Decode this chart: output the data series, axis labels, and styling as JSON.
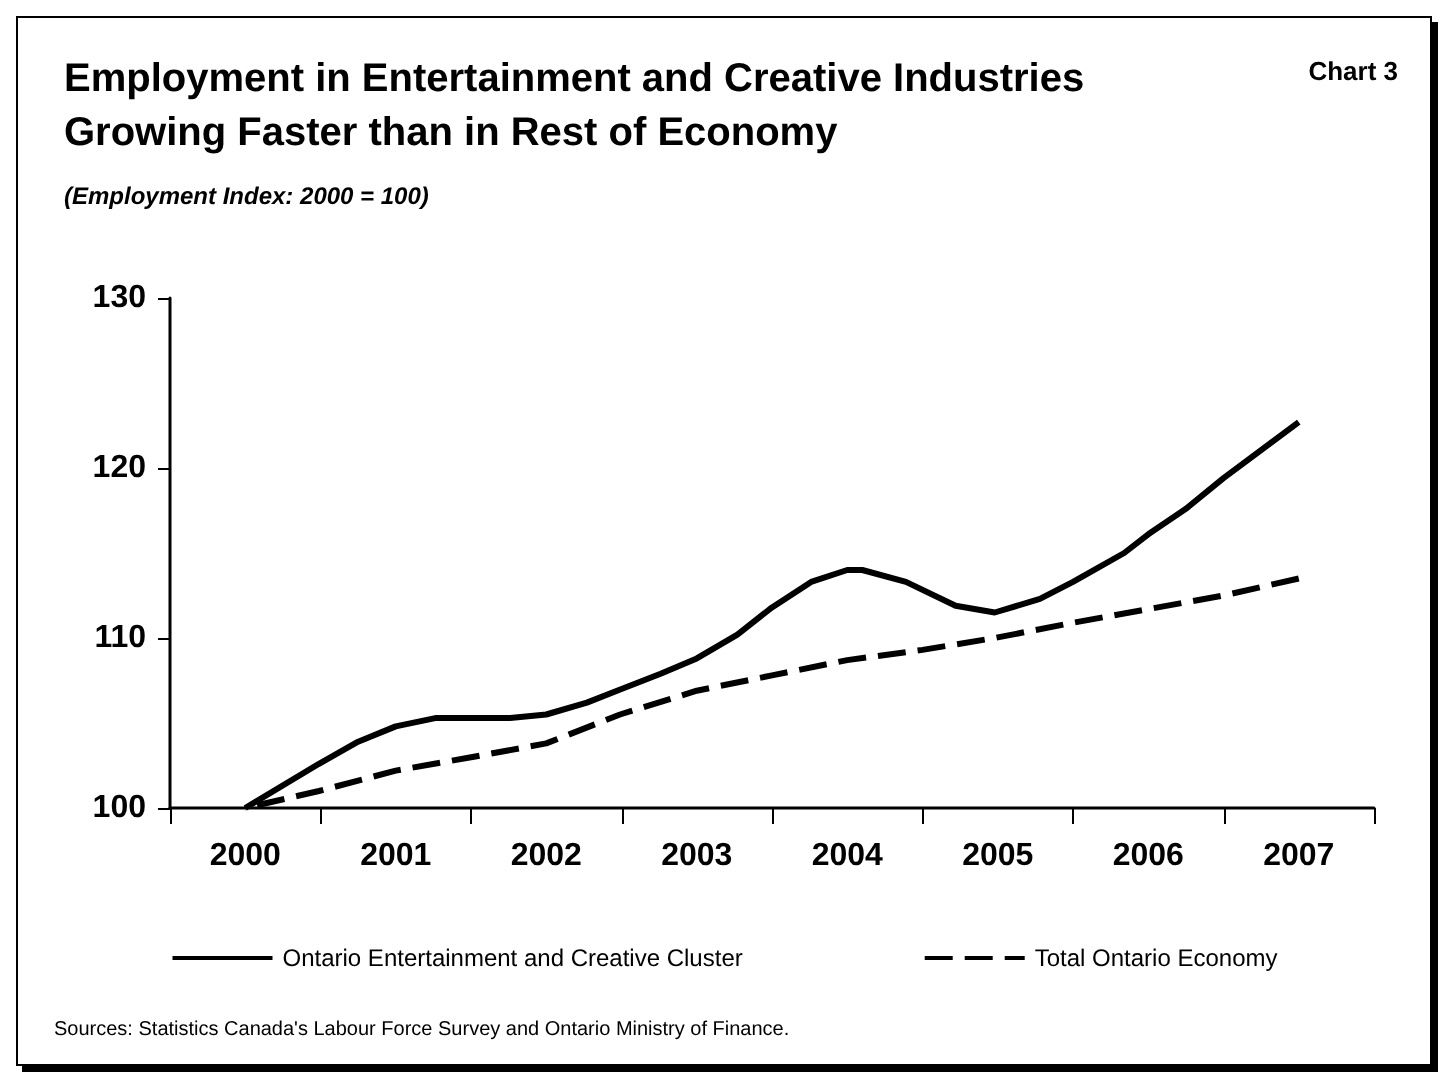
{
  "chart_data": {
    "type": "line",
    "title": "Employment in Entertainment and Creative Industries\nGrowing Faster than in Rest of Economy",
    "subtitle": "(Employment Index: 2000 = 100)",
    "annotations": [
      "Chart 3",
      "Sources: Statistics Canada's Labour Force Survey and Ontario Ministry of Finance."
    ],
    "series": [
      {
        "name": "Ontario Entertainment and Creative Cluster",
        "color": "#000000",
        "line_style": "solid",
        "x": [
          2000,
          2000.49,
          2000.75,
          2001.0,
          2001.27,
          2001.51,
          2001.76,
          2002.0,
          2002.27,
          2002.5,
          2002.76,
          2003.0,
          2003.27,
          2003.5,
          2003.76,
          2004.0,
          2004.1,
          2004.39,
          2004.72,
          2004.98,
          2005.28,
          2005.5,
          2005.84,
          2006.0,
          2006.25,
          2006.5,
          2007.0
        ],
        "values": [
          100,
          102.6,
          103.9,
          104.8,
          105.3,
          105.3,
          105.3,
          105.5,
          106.2,
          107.0,
          107.9,
          108.8,
          110.2,
          111.8,
          113.3,
          114.0,
          114.0,
          113.3,
          111.9,
          111.5,
          112.3,
          113.3,
          115.0,
          116.1,
          117.6,
          119.4,
          122.7
        ]
      },
      {
        "name": "Total Ontario Economy",
        "color": "#000000",
        "line_style": "dashed",
        "x": [
          2000,
          2000.49,
          2001.0,
          2001.51,
          2002.0,
          2002.49,
          2003.0,
          2003.5,
          2004.0,
          2004.5,
          2004.98,
          2005.5,
          2006.0,
          2006.5,
          2007.0
        ],
        "values": [
          100,
          101.0,
          102.2,
          103.0,
          103.8,
          105.5,
          106.9,
          107.8,
          108.7,
          109.3,
          110.0,
          110.9,
          111.7,
          112.5,
          113.5
        ]
      }
    ],
    "xlim": [
      1999.5,
      2007.5
    ],
    "xticks": [
      {
        "value": 1999.5,
        "label": null
      },
      {
        "value": 2000,
        "label": "2000"
      },
      {
        "value": 2000.5,
        "label": null
      },
      {
        "value": 2001,
        "label": "2001"
      },
      {
        "value": 2001.5,
        "label": null
      },
      {
        "value": 2002,
        "label": "2002"
      },
      {
        "value": 2002.5,
        "label": null
      },
      {
        "value": 2003,
        "label": "2003"
      },
      {
        "value": 2003.5,
        "label": null
      },
      {
        "value": 2004,
        "label": "2004"
      },
      {
        "value": 2004.5,
        "label": null
      },
      {
        "value": 2005,
        "label": "2005"
      },
      {
        "value": 2005.5,
        "label": null
      },
      {
        "value": 2006,
        "label": "2006"
      },
      {
        "value": 2006.5,
        "label": null
      },
      {
        "value": 2007,
        "label": "2007"
      },
      {
        "value": 2007.5,
        "label": null
      }
    ],
    "ylim": [
      100,
      130
    ],
    "yticks": [
      100,
      110,
      120,
      130
    ],
    "grid": false,
    "legend": "bottom",
    "marker": "none"
  }
}
